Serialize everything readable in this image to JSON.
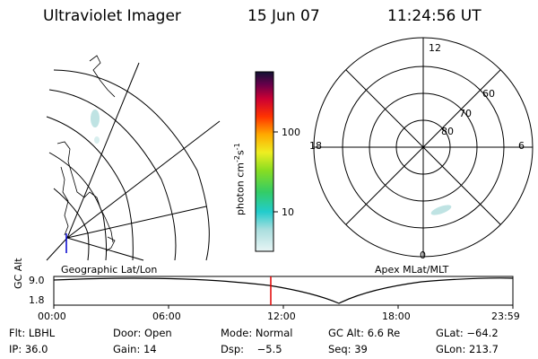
{
  "header": {
    "instrument": "Ultraviolet Imager",
    "date": "15 Jun 07",
    "time": "11:24:56 UT"
  },
  "colorbar": {
    "label": "photon cm-2s-1",
    "label_main": "photon cm",
    "label_sup1": "-2",
    "label_s": "s",
    "label_sup2": "-1",
    "ticks": [
      "100",
      "10"
    ]
  },
  "geographic_panel": {
    "label": "Geographic Lat/Lon"
  },
  "polar_panel": {
    "label": "Apex MLat/MLT",
    "mlt_labels": [
      "12",
      "18",
      "6",
      "0"
    ],
    "lat_labels": [
      "60",
      "70",
      "80"
    ]
  },
  "altitude_plot": {
    "ylabel": "GC Alt",
    "y_ticks": [
      "9.0",
      "1.8"
    ],
    "x_ticks": [
      "00:00",
      "06:00",
      "12:00",
      "18:00",
      "23:59"
    ],
    "current_marker_color": "#e00000"
  },
  "info": {
    "row1": [
      "Flt: LBHL",
      "Door: Open",
      "Mode: Normal",
      "GC Alt: 6.6 Re",
      "GLat: −64.2"
    ],
    "row2": [
      "IP: 36.0",
      "Gain: 14",
      "Dsp:    −5.5",
      "Seq: 39",
      "GLon: 213.7"
    ]
  },
  "colors": {
    "aurora": "#bfe3e3",
    "marker": "#e00000",
    "coast_marker": "#0000cc"
  }
}
